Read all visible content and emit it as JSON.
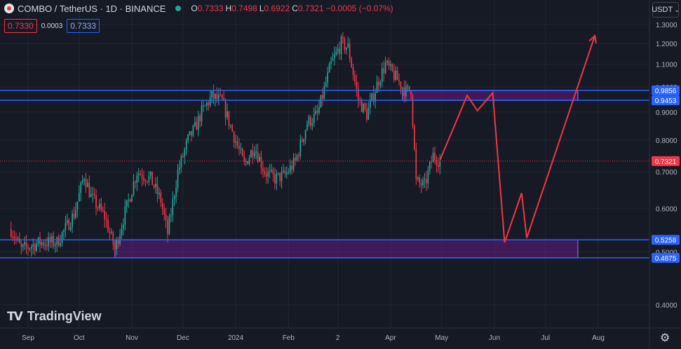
{
  "header": {
    "symbol": "COMBO / TetherUS · 1D · BINANCE",
    "o_label": "O",
    "o_value": "0.7333",
    "h_label": "H",
    "h_value": "0.7498",
    "l_label": "L",
    "l_value": "0.6922",
    "c_label": "C",
    "c_value": "0.7321",
    "change": "−0.0005 (−0.07%)",
    "bid": "0.7330",
    "spread": "0.0003",
    "ask": "0.7333",
    "currency": "USDT"
  },
  "branding": {
    "name": "TradingView"
  },
  "colors": {
    "up": "#26a69a",
    "down": "#f23645",
    "zone": "#7b1fa2",
    "zone_border": "#7e57c2",
    "line": "#2962ff",
    "projection": "#f23645",
    "grid": "#232632"
  },
  "chart_data": {
    "type": "candlestick",
    "x_ticks": [
      "Sep",
      "Oct",
      "Nov",
      "Dec",
      "2024",
      "Feb",
      "2",
      "Apr",
      "May",
      "Jun",
      "Jul",
      "Aug"
    ],
    "y_ticks": [
      "1.3000",
      "1.2000",
      "1.1000",
      "1.0000",
      "0.9000",
      "0.8000",
      "0.7000",
      "0.6000",
      "0.5000",
      "0.4000"
    ],
    "y_scale": "log",
    "ylim": [
      0.4,
      1.3
    ],
    "price_labels": [
      {
        "value": 0.9856,
        "text": "0.9856",
        "color": "#2962ff"
      },
      {
        "value": 0.9453,
        "text": "0.9453",
        "color": "#2962ff"
      },
      {
        "value": 0.7321,
        "text": "0.7321",
        "color": "#f23645"
      },
      {
        "value": 0.5258,
        "text": "0.5258",
        "color": "#2962ff"
      },
      {
        "value": 0.4875,
        "text": "0.4875",
        "color": "#2962ff"
      }
    ],
    "last_price": 0.7321,
    "zones": [
      {
        "from": "2024-04-08",
        "to": "2024-07-20",
        "low": 0.9453,
        "high": 0.9856
      },
      {
        "from": "2023-10-22",
        "to": "2024-07-20",
        "low": 0.4875,
        "high": 0.5258
      }
    ],
    "projection": [
      [
        "2024-04-30",
        0.735
      ],
      [
        "2024-05-16",
        0.965
      ],
      [
        "2024-05-22",
        0.905
      ],
      [
        "2024-05-31",
        0.975
      ],
      [
        "2024-06-07",
        0.52
      ],
      [
        "2024-06-17",
        0.64
      ],
      [
        "2024-06-20",
        0.53
      ],
      [
        "2024-07-30",
        1.24
      ]
    ],
    "path": [
      [
        "2023-08-22",
        0.55
      ],
      [
        "2023-08-28",
        0.505
      ],
      [
        "2023-09-08",
        0.52
      ],
      [
        "2023-09-18",
        0.52
      ],
      [
        "2023-09-28",
        0.585
      ],
      [
        "2023-10-04",
        0.69
      ],
      [
        "2023-10-08",
        0.63
      ],
      [
        "2023-10-16",
        0.58
      ],
      [
        "2023-10-22",
        0.505
      ],
      [
        "2023-10-28",
        0.59
      ],
      [
        "2023-11-04",
        0.7
      ],
      [
        "2023-11-12",
        0.68
      ],
      [
        "2023-11-18",
        0.62
      ],
      [
        "2023-11-22",
        0.54
      ],
      [
        "2023-11-28",
        0.7
      ],
      [
        "2023-12-04",
        0.8
      ],
      [
        "2023-12-08",
        0.84
      ],
      [
        "2023-12-12",
        0.9
      ],
      [
        "2023-12-18",
        0.96
      ],
      [
        "2023-12-24",
        0.94
      ],
      [
        "2023-12-30",
        0.83
      ],
      [
        "2024-01-06",
        0.72
      ],
      [
        "2024-01-12",
        0.78
      ],
      [
        "2024-01-18",
        0.7
      ],
      [
        "2024-01-24",
        0.68
      ],
      [
        "2024-01-30",
        0.69
      ],
      [
        "2024-02-05",
        0.73
      ],
      [
        "2024-02-12",
        0.86
      ],
      [
        "2024-02-18",
        0.89
      ],
      [
        "2024-02-26",
        1.1
      ],
      [
        "2024-03-03",
        1.2
      ],
      [
        "2024-03-07",
        1.18
      ],
      [
        "2024-03-13",
        0.95
      ],
      [
        "2024-03-18",
        0.89
      ],
      [
        "2024-03-25",
        1.03
      ],
      [
        "2024-03-29",
        1.1
      ],
      [
        "2024-04-04",
        1.04
      ],
      [
        "2024-04-10",
        0.98
      ],
      [
        "2024-04-13",
        0.99
      ],
      [
        "2024-04-16",
        0.67
      ],
      [
        "2024-04-21",
        0.66
      ],
      [
        "2024-04-26",
        0.75
      ],
      [
        "2024-04-30",
        0.7321
      ]
    ]
  }
}
